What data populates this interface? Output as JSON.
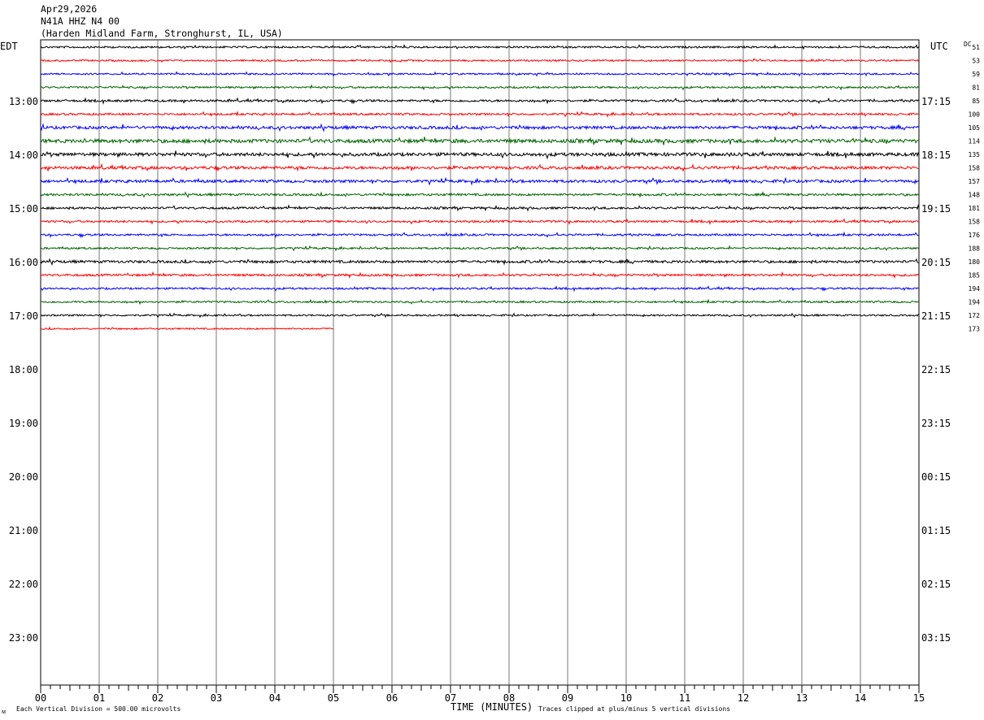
{
  "header": {
    "date": "Apr29,2026",
    "station": "N41A HHZ N4 00",
    "location": "(Harden Midland Farm, Stronghurst, IL, USA)"
  },
  "chart_data": {
    "type": "line",
    "title": "Apr29,2026 N41A HHZ N4 00 (Harden Midland Farm, Stronghurst, IL, USA)",
    "xlabel": "TIME (MINUTES)",
    "left_axis_title": "EDT",
    "right_axis_title": "UTC",
    "dc_label": "DC",
    "x_ticks": [
      "00",
      "01",
      "02",
      "03",
      "04",
      "05",
      "06",
      "07",
      "08",
      "09",
      "10",
      "11",
      "12",
      "13",
      "14",
      "15"
    ],
    "xlim": [
      0,
      15
    ],
    "left_hour_labels": [
      "13:00",
      "14:00",
      "15:00",
      "16:00",
      "17:00",
      "18:00",
      "19:00",
      "20:00",
      "21:00",
      "22:00",
      "23:00"
    ],
    "right_hour_labels": [
      "17:15",
      "18:15",
      "19:15",
      "20:15",
      "21:15",
      "22:15",
      "23:15",
      "00:15",
      "01:15",
      "02:15",
      "03:15"
    ],
    "trace_colors": [
      "#000000",
      "#ff0000",
      "#0000ff",
      "#006400"
    ],
    "dc_offsets": [
      51,
      53,
      59,
      81,
      85,
      100,
      105,
      114,
      135,
      158,
      157,
      148,
      181,
      158,
      176,
      188,
      180,
      185,
      194,
      194,
      172,
      173
    ],
    "trace_amplitudes": [
      0.5,
      0.45,
      0.45,
      0.5,
      0.6,
      0.55,
      0.8,
      1.0,
      0.9,
      0.8,
      0.75,
      0.6,
      0.6,
      0.55,
      0.55,
      0.5,
      0.7,
      0.6,
      0.5,
      0.5,
      0.45,
      0.4
    ],
    "trace_durations_min": [
      15,
      15,
      15,
      15,
      15,
      15,
      15,
      15,
      15,
      15,
      15,
      15,
      15,
      15,
      15,
      15,
      15,
      15,
      15,
      15,
      15,
      5
    ],
    "footer_left": "Each Vertical Division =  500.00 microvolts",
    "footer_right": "Traces clipped at plus/minus 5 vertical divisions",
    "corner_mark": "ᴍ"
  }
}
